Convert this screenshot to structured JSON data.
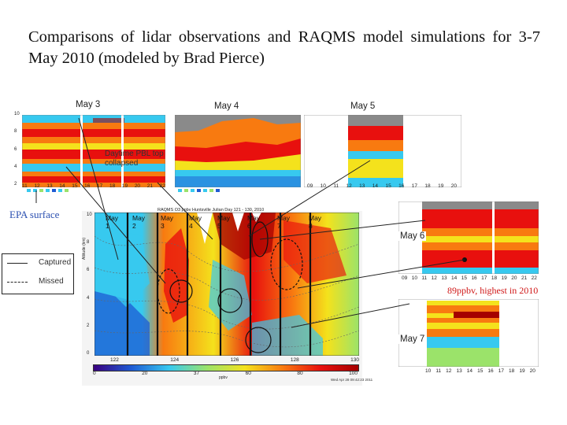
{
  "title": "Comparisons of lidar observations and RAQMS model simulations for 3-7 May 2010 (modeled by Brad Pierce)",
  "panels": {
    "may3": "May 3",
    "may4": "May 4",
    "may5": "May 5",
    "may6": "May 6",
    "may7": "May 7"
  },
  "annotations": {
    "pbl": "Daytime PBL top collapsed",
    "epa": "EPA surface",
    "ppbv": "89ppbv, highest in 2010"
  },
  "legend": {
    "captured": "Captured",
    "missed": "Missed"
  },
  "model": {
    "header": "RAQMS O3 ppbv Huntsville Julian Day 121 - 130, 2010",
    "days": [
      {
        "label": "May",
        "num": "1"
      },
      {
        "label": "May",
        "num": "2"
      },
      {
        "label": "May",
        "num": "3"
      },
      {
        "label": "May",
        "num": "4"
      },
      {
        "label": "May",
        "num": "5"
      },
      {
        "label": "May",
        "num": "6"
      },
      {
        "label": "May",
        "num": "7"
      },
      {
        "label": "May",
        "num": "8"
      }
    ],
    "xticks": [
      "122",
      "124",
      "126",
      "128",
      "130"
    ],
    "yticks": [
      "10",
      "8",
      "6",
      "4",
      "2",
      "0"
    ],
    "ylabel": "Altitude (km)",
    "colorbar_ticks": [
      "0",
      "20",
      "37",
      "60",
      "80",
      "100"
    ],
    "colorbar_label": "ppbv",
    "timestamp": "Wed Apr 28 09:42:23 2011"
  },
  "lidar_ticks": {
    "may3": [
      "11",
      "12",
      "13",
      "14",
      "15",
      "16",
      "17",
      "18",
      "19",
      "20",
      "21",
      "22"
    ],
    "may5": [
      "09",
      "10",
      "11",
      "12",
      "13",
      "14",
      "15",
      "16",
      "17",
      "18",
      "19",
      "20"
    ],
    "may6": [
      "09",
      "10",
      "11",
      "12",
      "13",
      "14",
      "15",
      "16",
      "17",
      "18",
      "19",
      "20",
      "21",
      "22"
    ],
    "may7": [
      "10",
      "11",
      "12",
      "13",
      "14",
      "15",
      "16",
      "17",
      "18",
      "19",
      "20"
    ],
    "yvals": [
      "10",
      "8",
      "6",
      "4",
      "2"
    ]
  },
  "colors": {
    "dark_red": "#a50000",
    "red": "#e8100e",
    "orange": "#f87a10",
    "yellow": "#f4e21c",
    "cyan": "#37c9ef",
    "blue": "#1e5bd4",
    "grey_cloud": "#8a8a8a"
  }
}
